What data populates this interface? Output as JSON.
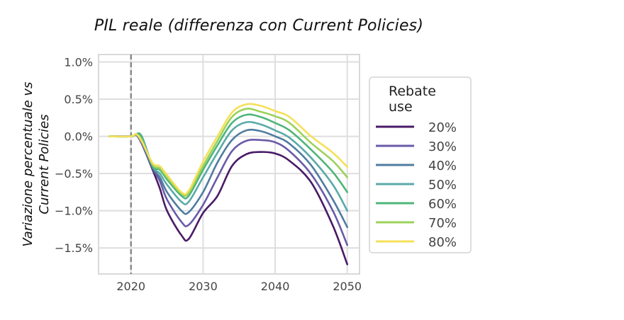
{
  "chart_data": {
    "type": "line",
    "title": "PIL reale (differenza con Current Policies)",
    "xlabel": "",
    "ylabel": [
      "Variazione percentuale vs",
      "Current Policies"
    ],
    "xlim": [
      2015.5,
      2051.7
    ],
    "ylim": [
      -1.85,
      1.1
    ],
    "grid": true,
    "x_ticks": [
      2020,
      2030,
      2040,
      2050
    ],
    "x_tick_labels": [
      "2020",
      "2030",
      "2040",
      "2050"
    ],
    "y_ticks": [
      1.0,
      0.5,
      0.0,
      -0.5,
      -1.0,
      -1.5
    ],
    "y_tick_labels": [
      "1.0%",
      "0.5%",
      "0.0%",
      "−0.5%",
      "−1.0%",
      "−1.5%"
    ],
    "vline": {
      "x": 2020,
      "style": "dashed",
      "color": "#8a8a8a"
    },
    "legend": {
      "title": [
        "Rebate",
        "use"
      ],
      "position": "right-outside"
    },
    "x": [
      2017,
      2020,
      2020.7,
      2021.5,
      2023,
      2024,
      2025,
      2027,
      2028,
      2030,
      2032,
      2034,
      2036,
      2038,
      2040,
      2042,
      2045,
      2048,
      2050
    ],
    "series": [
      {
        "name": "20%",
        "color": "#4a1a66",
        "values": [
          0,
          0,
          0.02,
          -0.1,
          -0.45,
          -0.7,
          -1.0,
          -1.33,
          -1.38,
          -1.03,
          -0.8,
          -0.4,
          -0.24,
          -0.21,
          -0.23,
          -0.33,
          -0.62,
          -1.2,
          -1.72
        ]
      },
      {
        "name": "30%",
        "color": "#6a5aa8",
        "values": [
          0,
          0,
          0.02,
          -0.1,
          -0.43,
          -0.6,
          -0.85,
          -1.15,
          -1.19,
          -0.92,
          -0.55,
          -0.2,
          -0.06,
          -0.05,
          -0.08,
          -0.2,
          -0.51,
          -1.0,
          -1.46
        ]
      },
      {
        "name": "40%",
        "color": "#4f7ca0",
        "values": [
          0,
          0,
          0.02,
          -0.08,
          -0.42,
          -0.55,
          -0.75,
          -1.0,
          -1.02,
          -0.75,
          -0.35,
          -0.05,
          0.08,
          0.07,
          0.0,
          -0.1,
          -0.39,
          -0.85,
          -1.22
        ]
      },
      {
        "name": "50%",
        "color": "#5aaaa8",
        "values": [
          0,
          0,
          0.03,
          0.0,
          -0.4,
          -0.5,
          -0.65,
          -0.88,
          -0.88,
          -0.55,
          -0.22,
          0.08,
          0.19,
          0.16,
          0.08,
          -0.02,
          -0.29,
          -0.65,
          -1.0
        ]
      },
      {
        "name": "60%",
        "color": "#4fb57a",
        "values": [
          0,
          0,
          0.03,
          -0.02,
          -0.4,
          -0.45,
          -0.58,
          -0.8,
          -0.8,
          -0.45,
          -0.12,
          0.18,
          0.29,
          0.26,
          0.18,
          0.08,
          -0.18,
          -0.48,
          -0.75
        ]
      },
      {
        "name": "70%",
        "color": "#9bd25a",
        "values": [
          0,
          0,
          0.03,
          -0.05,
          -0.38,
          -0.43,
          -0.55,
          -0.77,
          -0.76,
          -0.4,
          -0.06,
          0.26,
          0.37,
          0.33,
          0.27,
          0.18,
          -0.09,
          -0.33,
          -0.55
        ]
      },
      {
        "name": "80%",
        "color": "#f5e05a",
        "values": [
          0,
          0,
          0.03,
          -0.07,
          -0.36,
          -0.4,
          -0.52,
          -0.75,
          -0.73,
          -0.34,
          0.0,
          0.32,
          0.43,
          0.41,
          0.34,
          0.26,
          0.0,
          -0.22,
          -0.41
        ]
      }
    ]
  }
}
